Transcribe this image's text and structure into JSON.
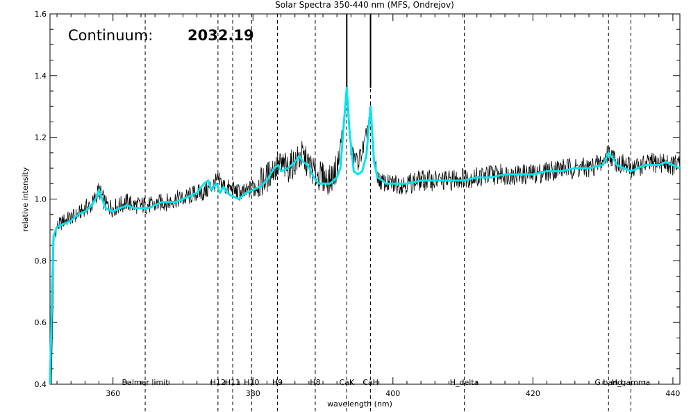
{
  "chart_data": {
    "type": "line",
    "title": "Solar Spectra 350-440 nm (MFS, Ondrejov)",
    "xlabel": "wavelength (nm)",
    "ylabel": "relative intensity",
    "xlim": [
      351,
      441
    ],
    "ylim": [
      0.4,
      1.6
    ],
    "x_ticks": [
      360,
      380,
      400,
      420,
      440
    ],
    "y_ticks": [
      0.4,
      0.6,
      0.8,
      1.0,
      1.2,
      1.4,
      1.6
    ],
    "x_tick_labels": [
      "360",
      "380",
      "400",
      "420",
      "440"
    ],
    "y_tick_labels": [
      "0.4",
      "0.6",
      "0.8",
      "1.0",
      "1.2",
      "1.4",
      "1.6"
    ],
    "grid": false,
    "annotation": {
      "label": "Continuum:",
      "value": "2032.19"
    },
    "line_markers": [
      {
        "name": "Balmer_limit",
        "label": "Balmer limit",
        "x": 364.6
      },
      {
        "name": "H12",
        "label": "H12",
        "x": 375.0
      },
      {
        "name": "H11",
        "label": "H11",
        "x": 377.1
      },
      {
        "name": "H10",
        "label": "H10",
        "x": 379.8
      },
      {
        "name": "H9",
        "label": "H9",
        "x": 383.5
      },
      {
        "name": "H8",
        "label": "H8",
        "x": 388.9
      },
      {
        "name": "CaK",
        "label": "CaK",
        "x": 393.4
      },
      {
        "name": "CaH",
        "label": "CaH",
        "x": 396.8
      },
      {
        "name": "H_delta",
        "label": "H_delta",
        "x": 410.2
      },
      {
        "name": "G_band",
        "label": "G band",
        "x": 430.8
      },
      {
        "name": "H_gamma",
        "label": "H_gamma",
        "x": 434.0
      }
    ],
    "peak_lines": [
      393.4,
      396.8
    ],
    "series": [
      {
        "style": "raw",
        "color": "#000000",
        "x": [
          351.2,
          351.6,
          352,
          353,
          354,
          355,
          356,
          357,
          358,
          359,
          360,
          361,
          362,
          363,
          364,
          365,
          366,
          367,
          368,
          369,
          370,
          371,
          372,
          373,
          374,
          375,
          376,
          377,
          378,
          379,
          380,
          381,
          382,
          383,
          384,
          385,
          386,
          387,
          388,
          389,
          390,
          391,
          392,
          393,
          393.4,
          394,
          395,
          396,
          396.8,
          397.5,
          398,
          399,
          400,
          402,
          404,
          406,
          408,
          410,
          412,
          414,
          416,
          418,
          420,
          422,
          424,
          426,
          428,
          430,
          430.8,
          432,
          434,
          436,
          438,
          440,
          441
        ],
        "y": [
          0.4,
          0.88,
          0.91,
          0.93,
          0.94,
          0.95,
          0.97,
          0.98,
          1.03,
          0.98,
          0.97,
          0.98,
          0.99,
          0.98,
          0.98,
          0.98,
          0.98,
          0.99,
          0.99,
          1.0,
          1.0,
          1.01,
          1.02,
          1.02,
          1.04,
          1.06,
          1.04,
          1.03,
          1.02,
          1.02,
          1.04,
          1.05,
          1.07,
          1.1,
          1.11,
          1.1,
          1.12,
          1.14,
          1.11,
          1.08,
          1.07,
          1.06,
          1.1,
          1.25,
          1.35,
          1.15,
          1.12,
          1.18,
          1.29,
          1.1,
          1.06,
          1.05,
          1.05,
          1.05,
          1.06,
          1.06,
          1.06,
          1.07,
          1.07,
          1.08,
          1.08,
          1.08,
          1.08,
          1.09,
          1.1,
          1.1,
          1.1,
          1.12,
          1.15,
          1.12,
          1.1,
          1.11,
          1.12,
          1.11,
          1.11
        ]
      },
      {
        "style": "smoothed",
        "color": "#00e5ee",
        "x": [
          351.0,
          351.3,
          351.5,
          352,
          353,
          354,
          355,
          356,
          357,
          357.5,
          358,
          358.6,
          359,
          360,
          361,
          362,
          363,
          364,
          365,
          366,
          367,
          368,
          369,
          370,
          371,
          372,
          373,
          373.6,
          374,
          374.8,
          375.3,
          375.8,
          376.3,
          377,
          378,
          379,
          380,
          381,
          382,
          383,
          383.6,
          384,
          385,
          386,
          386.6,
          387.2,
          387.8,
          388.5,
          389,
          389.5,
          390,
          391,
          392,
          392.5,
          393,
          393.4,
          393.8,
          394.4,
          395,
          395.6,
          396.2,
          396.8,
          397.3,
          397.8,
          398.5,
          399,
          400,
          402,
          404,
          406,
          408,
          410,
          412,
          414,
          416,
          418,
          420,
          422,
          424,
          426,
          428,
          430,
          430.8,
          431.5,
          432,
          433,
          434,
          435,
          436,
          437,
          438,
          439,
          440,
          441
        ],
        "y": [
          0.4,
          0.7,
          0.88,
          0.91,
          0.92,
          0.93,
          0.95,
          0.96,
          0.98,
          1.0,
          1.03,
          0.99,
          0.97,
          0.96,
          0.97,
          0.98,
          0.97,
          0.97,
          0.97,
          0.98,
          0.99,
          0.99,
          0.99,
          1.0,
          1.01,
          1.02,
          1.05,
          1.06,
          1.03,
          1.05,
          1.02,
          1.04,
          1.02,
          1.01,
          1.0,
          1.02,
          1.03,
          1.04,
          1.06,
          1.1,
          1.11,
          1.09,
          1.1,
          1.12,
          1.14,
          1.12,
          1.11,
          1.08,
          1.06,
          1.05,
          1.05,
          1.05,
          1.07,
          1.1,
          1.25,
          1.36,
          1.22,
          1.09,
          1.08,
          1.09,
          1.14,
          1.3,
          1.12,
          1.07,
          1.06,
          1.05,
          1.05,
          1.05,
          1.06,
          1.06,
          1.06,
          1.06,
          1.07,
          1.07,
          1.08,
          1.08,
          1.08,
          1.09,
          1.09,
          1.1,
          1.1,
          1.11,
          1.15,
          1.13,
          1.11,
          1.1,
          1.09,
          1.1,
          1.11,
          1.11,
          1.11,
          1.12,
          1.11,
          1.1
        ]
      }
    ]
  }
}
